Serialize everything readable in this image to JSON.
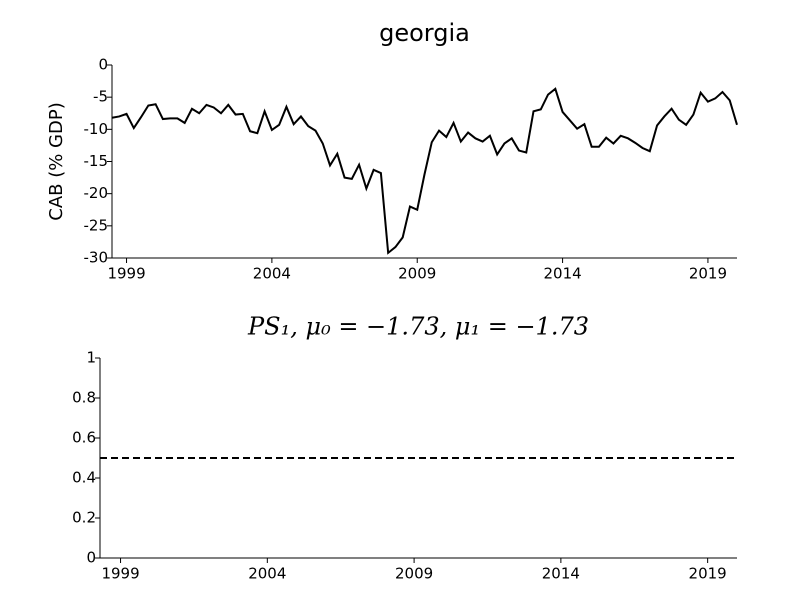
{
  "chart_data": [
    {
      "type": "line",
      "title": "georgia",
      "ylabel": "CAB (% GDP)",
      "x": [
        1998.5,
        1998.75,
        1999,
        1999.25,
        1999.5,
        1999.75,
        2000,
        2000.25,
        2000.5,
        2000.75,
        2001,
        2001.25,
        2001.5,
        2001.75,
        2002,
        2002.25,
        2002.5,
        2002.75,
        2003,
        2003.25,
        2003.5,
        2003.75,
        2004,
        2004.25,
        2004.5,
        2004.75,
        2005,
        2005.25,
        2005.5,
        2005.75,
        2006,
        2006.25,
        2006.5,
        2006.75,
        2007,
        2007.25,
        2007.5,
        2007.75,
        2008,
        2008.25,
        2008.5,
        2008.75,
        2009,
        2009.25,
        2009.5,
        2009.75,
        2010,
        2010.25,
        2010.5,
        2010.75,
        2011,
        2011.25,
        2011.5,
        2011.75,
        2012,
        2012.25,
        2012.5,
        2012.75,
        2013,
        2013.25,
        2013.5,
        2013.75,
        2014,
        2014.25,
        2014.5,
        2014.75,
        2015,
        2015.25,
        2015.5,
        2015.75,
        2016,
        2016.25,
        2016.5,
        2016.75,
        2017,
        2017.25,
        2017.5,
        2017.75,
        2018,
        2018.25,
        2018.5,
        2018.75,
        2019,
        2019.25,
        2019.5,
        2019.75,
        2020
      ],
      "series": [
        {
          "color": "#000000",
          "values": [
            -8.2,
            -8.0,
            -7.6,
            -9.8,
            -8.1,
            -6.3,
            -6.1,
            -8.4,
            -8.3,
            -8.3,
            -9.0,
            -6.8,
            -7.5,
            -6.2,
            -6.6,
            -7.5,
            -6.2,
            -7.7,
            -7.6,
            -10.3,
            -10.6,
            -7.2,
            -10.1,
            -9.3,
            -6.5,
            -9.2,
            -8.0,
            -9.5,
            -10.2,
            -12.2,
            -15.6,
            -13.8,
            -17.5,
            -17.7,
            -15.5,
            -19.2,
            -16.3,
            -16.8,
            -29.2,
            -28.3,
            -26.8,
            -22.0,
            -22.5,
            -17.0,
            -12.0,
            -10.2,
            -11.2,
            -9.0,
            -11.9,
            -10.5,
            -11.4,
            -11.9,
            -11.0,
            -13.9,
            -12.2,
            -11.4,
            -13.3,
            -13.6,
            -7.2,
            -6.9,
            -4.6,
            -3.7,
            -7.3,
            -8.6,
            -9.9,
            -9.2,
            -12.7,
            -12.7,
            -11.3,
            -12.2,
            -11.0,
            -11.4,
            -12.1,
            -12.9,
            -13.4,
            -9.4,
            -8.0,
            -6.8,
            -8.5,
            -9.3,
            -7.7,
            -4.3,
            -5.7,
            -5.2,
            -4.2,
            -5.5,
            -9.3
          ]
        }
      ],
      "xlim": [
        1998.5,
        2020
      ],
      "xticks": [
        1999,
        2004,
        2009,
        2014,
        2019
      ],
      "ylim": [
        -30,
        0
      ],
      "yticks": [
        0,
        -5,
        -10,
        -15,
        -20,
        -25,
        -30
      ]
    },
    {
      "type": "line",
      "title": "PS₁, μ₀ = −1.73, μ₁ = −1.73",
      "x": [
        1998.3,
        2020
      ],
      "series": [
        {
          "color": "#000000",
          "dashed": true,
          "values": [
            0.5,
            0.5
          ]
        }
      ],
      "xlim": [
        1998.3,
        2020
      ],
      "xticks": [
        1999,
        2004,
        2009,
        2014,
        2019
      ],
      "ylim": [
        0,
        1
      ],
      "yticks": [
        0,
        0.2,
        0.4,
        0.6,
        0.8,
        1
      ]
    }
  ]
}
